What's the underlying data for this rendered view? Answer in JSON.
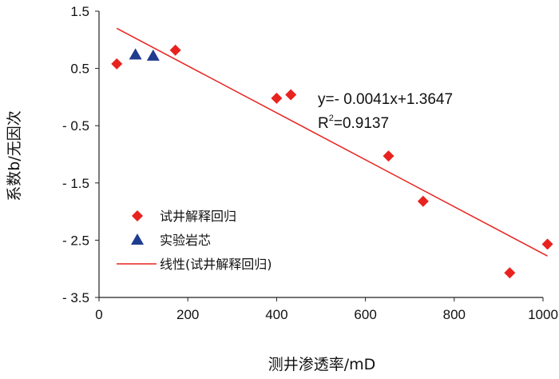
{
  "chart_data": {
    "type": "scatter",
    "xlabel": "测井渗透率/mD",
    "ylabel": "系数b/无因次",
    "xlim": [
      0,
      1000
    ],
    "ylim": [
      -3.5,
      1.5
    ],
    "x_ticks": [
      0,
      200,
      400,
      600,
      800,
      1000
    ],
    "y_ticks": [
      1.5,
      0.5,
      -0.5,
      -1.5,
      -2.5,
      -3.5
    ],
    "y_tick_labels": [
      "1.5",
      "0.5",
      "- 0.5",
      "- 1.5",
      "- 2.5",
      "- 3.5"
    ],
    "grid": false,
    "legend_position": "bottom-left",
    "series": [
      {
        "name": "试井解释回归",
        "marker": "diamond",
        "color": "#e8231f",
        "points": [
          {
            "x": 40,
            "y": 0.58
          },
          {
            "x": 172,
            "y": 0.82
          },
          {
            "x": 400,
            "y": -0.02
          },
          {
            "x": 432,
            "y": 0.04
          },
          {
            "x": 652,
            "y": -1.03
          },
          {
            "x": 730,
            "y": -1.82
          },
          {
            "x": 925,
            "y": -3.07
          },
          {
            "x": 1010,
            "y": -2.57
          }
        ]
      },
      {
        "name": "实验岩芯",
        "marker": "triangle",
        "color": "#1f3c8f",
        "points": [
          {
            "x": 82,
            "y": 0.74
          },
          {
            "x": 122,
            "y": 0.72
          }
        ]
      },
      {
        "name": "线性(试井解释回归)",
        "type": "line",
        "color": "#e8231f",
        "slope": -0.0041,
        "intercept": 1.3647,
        "x_range": [
          40,
          1010
        ]
      }
    ],
    "annotations": {
      "equation": "y=- 0.0041x+1.3647",
      "r2_prefix": "R",
      "r2_sup": "2",
      "r2_value": "=0.9137"
    }
  }
}
